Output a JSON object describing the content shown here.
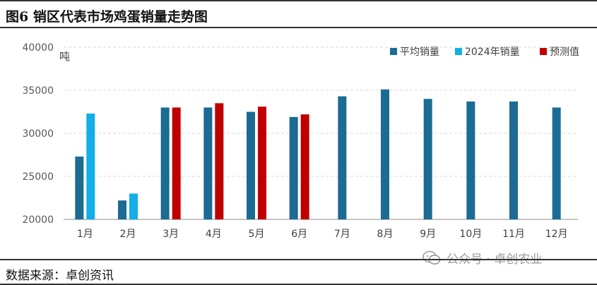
{
  "title": "图6 销区代表市场鸡蛋销量走势图",
  "source": "数据来源：卓创资讯",
  "watermark": "公众号 · 卓创农业",
  "colors": {
    "avg": "#1b6b93",
    "y2024": "#12aee8",
    "forecast": "#c00000"
  },
  "chart_data": {
    "type": "bar",
    "unit": "吨",
    "categories": [
      "1月",
      "2月",
      "3月",
      "4月",
      "5月",
      "6月",
      "7月",
      "8月",
      "9月",
      "10月",
      "11月",
      "12月"
    ],
    "ylim": [
      20000,
      40000
    ],
    "yticks": [
      "20000",
      "25000",
      "30000",
      "35000",
      "40000"
    ],
    "grid": true,
    "legend_position": "top-right",
    "series": [
      {
        "name": "平均销量",
        "color": "#1b6b93",
        "values": [
          27300,
          22200,
          33000,
          33000,
          32500,
          31900,
          34300,
          35100,
          34000,
          33700,
          33700,
          33000
        ]
      },
      {
        "name": "2024年销量",
        "color": "#12aee8",
        "values": [
          32300,
          23000,
          null,
          null,
          null,
          null,
          null,
          null,
          null,
          null,
          null,
          null
        ]
      },
      {
        "name": "预测值",
        "color": "#c00000",
        "values": [
          null,
          null,
          33000,
          33500,
          33100,
          32200,
          null,
          null,
          null,
          null,
          null,
          null
        ]
      }
    ]
  }
}
